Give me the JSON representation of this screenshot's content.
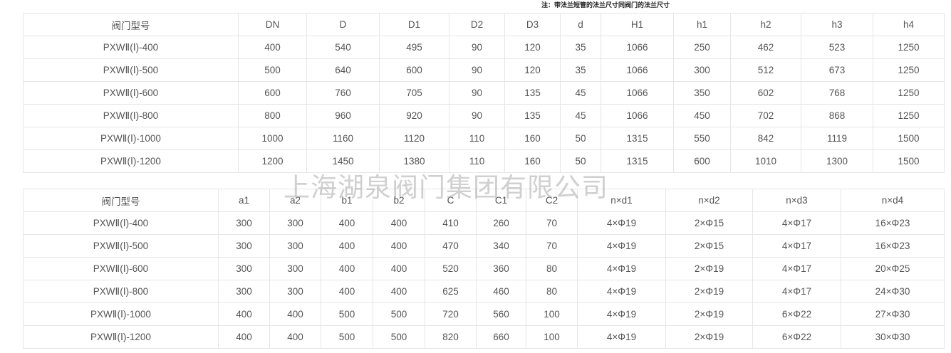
{
  "note": "注：带法兰短管的法兰尺寸同阀门的法兰尺寸",
  "watermark": "上海湖泉阀门集团有限公司",
  "table1": {
    "headers": [
      "阀门型号",
      "DN",
      "D",
      "D1",
      "D2",
      "D3",
      "d",
      "H1",
      "h1",
      "h2",
      "h3",
      "h4"
    ],
    "rows": [
      [
        "PXWⅡ(Ⅰ)-400",
        "400",
        "540",
        "495",
        "90",
        "120",
        "35",
        "1066",
        "250",
        "462",
        "523",
        "1250"
      ],
      [
        "PXWⅡ(Ⅰ)-500",
        "500",
        "640",
        "600",
        "90",
        "120",
        "35",
        "1066",
        "300",
        "512",
        "673",
        "1250"
      ],
      [
        "PXWⅡ(Ⅰ)-600",
        "600",
        "760",
        "705",
        "90",
        "135",
        "45",
        "1066",
        "350",
        "602",
        "768",
        "1250"
      ],
      [
        "PXWⅡ(Ⅰ)-800",
        "800",
        "960",
        "920",
        "90",
        "135",
        "45",
        "1066",
        "450",
        "702",
        "868",
        "1250"
      ],
      [
        "PXWⅡ(Ⅰ)-1000",
        "1000",
        "1160",
        "1120",
        "110",
        "160",
        "50",
        "1315",
        "550",
        "842",
        "1119",
        "1500"
      ],
      [
        "PXWⅡ(Ⅰ)-1200",
        "1200",
        "1450",
        "1380",
        "110",
        "160",
        "50",
        "1315",
        "600",
        "1010",
        "1300",
        "1500"
      ]
    ]
  },
  "table2": {
    "headers": [
      "阀门型号",
      "a1",
      "a2",
      "b1",
      "b2",
      "C",
      "C1",
      "C2",
      "n×d1",
      "n×d2",
      "n×d3",
      "n×d4"
    ],
    "rows": [
      [
        "PXWⅡ(Ⅰ)-400",
        "300",
        "300",
        "400",
        "400",
        "410",
        "260",
        "70",
        "4×Φ19",
        "2×Φ15",
        "4×Φ17",
        "16×Φ23"
      ],
      [
        "PXWⅡ(Ⅰ)-500",
        "300",
        "300",
        "400",
        "400",
        "470",
        "340",
        "70",
        "4×Φ19",
        "2×Φ15",
        "4×Φ17",
        "16×Φ23"
      ],
      [
        "PXWⅡ(Ⅰ)-600",
        "300",
        "300",
        "400",
        "400",
        "520",
        "360",
        "80",
        "4×Φ19",
        "2×Φ19",
        "4×Φ17",
        "20×Φ25"
      ],
      [
        "PXWⅡ(Ⅰ)-800",
        "300",
        "300",
        "400",
        "400",
        "625",
        "460",
        "80",
        "4×Φ19",
        "2×Φ19",
        "4×Φ17",
        "24×Φ30"
      ],
      [
        "PXWⅡ(Ⅰ)-1000",
        "400",
        "400",
        "500",
        "500",
        "720",
        "560",
        "100",
        "4×Φ19",
        "2×Φ19",
        "6×Φ22",
        "27×Φ30"
      ],
      [
        "PXWⅡ(Ⅰ)-1200",
        "400",
        "400",
        "500",
        "500",
        "820",
        "660",
        "100",
        "4×Φ19",
        "2×Φ19",
        "6×Φ22",
        "30×Φ30"
      ]
    ]
  }
}
